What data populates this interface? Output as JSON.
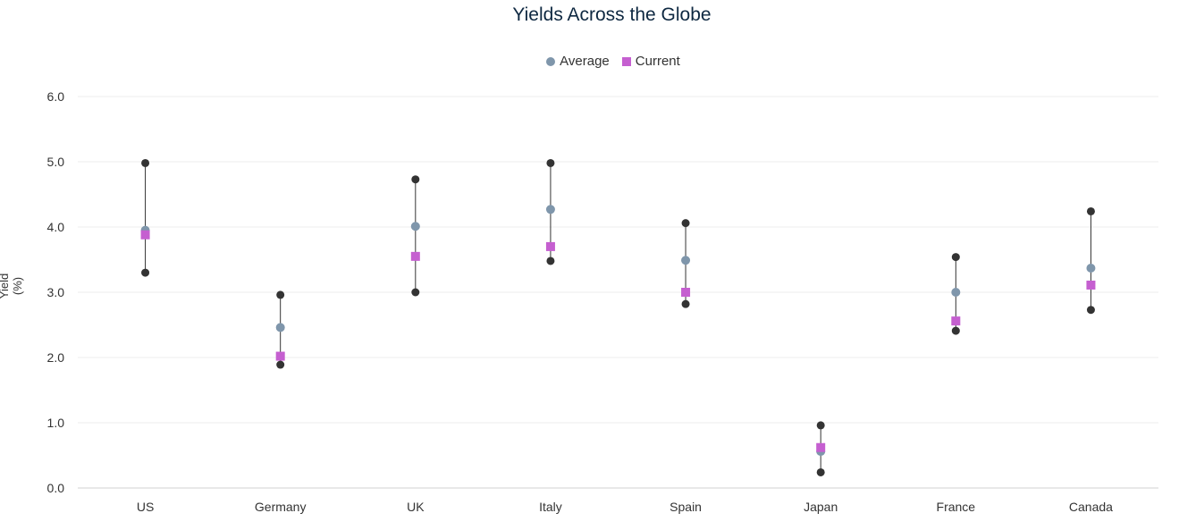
{
  "chart_data": {
    "type": "scatter",
    "title": "Yields Across the Globe",
    "ylabel": "Yield (%)",
    "xlabel": "",
    "ylim": [
      0,
      6
    ],
    "yticks": [
      "0.0",
      "1.0",
      "2.0",
      "3.0",
      "4.0",
      "5.0",
      "6.0"
    ],
    "grid": true,
    "legend_position": "top-center",
    "categories": [
      "US",
      "Germany",
      "UK",
      "Italy",
      "Spain",
      "Japan",
      "France",
      "Canada"
    ],
    "range_low": [
      3.3,
      1.89,
      3.0,
      3.48,
      2.82,
      0.24,
      2.41,
      2.73
    ],
    "range_high": [
      4.98,
      2.96,
      4.73,
      4.98,
      4.06,
      0.96,
      3.54,
      4.24
    ],
    "series": [
      {
        "name": "Average",
        "marker": "circle",
        "color": "#7f96ab",
        "values": [
          3.95,
          2.46,
          4.01,
          4.27,
          3.49,
          0.56,
          3.0,
          3.37
        ]
      },
      {
        "name": "Current",
        "marker": "square",
        "color": "#c55fd0",
        "values": [
          3.88,
          2.02,
          3.55,
          3.7,
          3.0,
          0.62,
          2.56,
          3.11
        ]
      }
    ],
    "range_color": "#333333"
  }
}
